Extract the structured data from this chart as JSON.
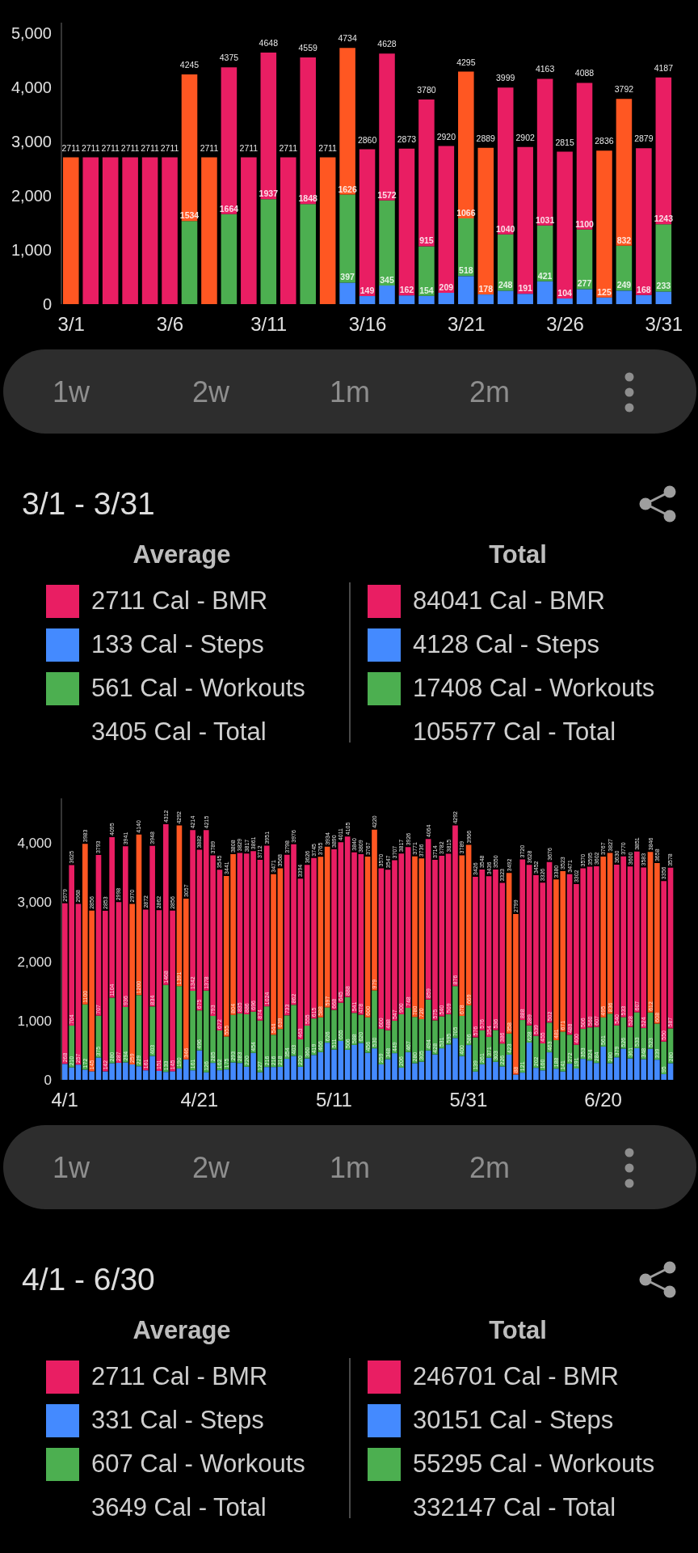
{
  "chart_data": [
    {
      "type": "bar",
      "stacked": true,
      "categories": [
        "3/1",
        null,
        null,
        null,
        null,
        "3/6",
        null,
        null,
        null,
        null,
        "3/11",
        null,
        null,
        null,
        null,
        "3/16",
        null,
        null,
        null,
        null,
        "3/21",
        null,
        null,
        null,
        null,
        "3/26",
        null,
        null,
        null,
        null,
        "3/31"
      ],
      "series": [
        {
          "color": "#448aff",
          "values": [
            null,
            null,
            null,
            null,
            null,
            null,
            null,
            null,
            null,
            null,
            null,
            null,
            null,
            null,
            397,
            149,
            345,
            162,
            154,
            209,
            518,
            178,
            248,
            191,
            421,
            104,
            277,
            125,
            249,
            168,
            233
          ],
          "value_labels": [
            null,
            null,
            null,
            null,
            null,
            null,
            null,
            null,
            null,
            null,
            null,
            null,
            null,
            null,
            "397",
            "149",
            "345",
            "162",
            "154",
            "209",
            "518",
            "178",
            "248",
            "191",
            "421",
            "104",
            "277",
            "125",
            "249",
            "168",
            "233"
          ]
        },
        {
          "color": "#4caf50",
          "values": [
            null,
            null,
            null,
            null,
            null,
            null,
            1534,
            null,
            1664,
            null,
            1937,
            null,
            1848,
            null,
            1626,
            null,
            1572,
            null,
            915,
            null,
            1066,
            null,
            1040,
            null,
            1031,
            null,
            1100,
            null,
            832,
            null,
            1243
          ],
          "value_labels": [
            null,
            null,
            null,
            null,
            null,
            null,
            "1534",
            null,
            "1664",
            null,
            "1937",
            null,
            "1848",
            null,
            "1626",
            null,
            "1572",
            null,
            "915",
            null,
            "1066",
            null,
            "1040",
            null,
            "1031",
            null,
            "1100",
            null,
            "832",
            null,
            "1243"
          ]
        },
        {
          "color": "#e91e63",
          "values": [
            2711,
            2711,
            2711,
            2711,
            2711,
            2711,
            2711,
            2711,
            2711,
            2711,
            2711,
            2711,
            2711,
            2711,
            2711,
            2711,
            2711,
            2711,
            2711,
            2711,
            2711,
            2711,
            2711,
            2711,
            2711,
            2711,
            2711,
            2711,
            2711,
            2711,
            2711
          ],
          "colors": [
            "#ff5722",
            "#e91e63",
            "#e91e63",
            "#e91e63",
            "#e91e63",
            "#e91e63",
            "#ff5722",
            "#ff5722",
            "#e91e63",
            "#e91e63",
            "#e91e63",
            "#e91e63",
            "#e91e63",
            "#ff5722",
            "#ff5722",
            "#e91e63",
            "#e91e63",
            "#e91e63",
            "#e91e63",
            "#e91e63",
            "#ff5722",
            "#ff5722",
            "#e91e63",
            "#e91e63",
            "#e91e63",
            "#e91e63",
            "#e91e63",
            "#ff5722",
            "#ff5722",
            "#e91e63",
            "#e91e63"
          ]
        }
      ],
      "totals": [
        "2711",
        "2711",
        "2711",
        "2711",
        "2711",
        "2711",
        "4245",
        "2711",
        "4375",
        "2711",
        "4648",
        "2711",
        "4559",
        "2711",
        "4734",
        "2860",
        "4628",
        "2873",
        "3780",
        "2920",
        "4295",
        "2889",
        "3999",
        "2902",
        "4163",
        "2815",
        "4088",
        "2836",
        "3792",
        "2879",
        "4187"
      ],
      "ylim": [
        0,
        5200
      ],
      "yticks": [
        0,
        {
          "value": 1000,
          "label": "1,000"
        },
        {
          "value": 2000,
          "label": "2,000"
        },
        {
          "value": 3000,
          "label": "3,000"
        },
        {
          "value": 4000,
          "label": "4,000"
        },
        {
          "value": 5000,
          "label": "5,000"
        }
      ]
    },
    {
      "type": "other",
      "title": "3/1 - 3/31",
      "annotations": [
        "1w",
        "2w",
        "1m",
        "2m",
        "Average",
        "Total",
        "2711 Cal - BMR",
        "133 Cal - Steps",
        "561 Cal - Workouts",
        "3405 Cal - Total",
        "84041 Cal - BMR",
        "4128 Cal - Steps",
        "17408 Cal - Workouts",
        "105577 Cal - Total"
      ]
    },
    {
      "type": "bar",
      "stacked": true,
      "categories": [
        "4/1",
        null,
        null,
        null,
        null,
        null,
        null,
        null,
        null,
        null,
        null,
        null,
        null,
        null,
        null,
        null,
        null,
        null,
        null,
        null,
        "4/21",
        null,
        null,
        null,
        null,
        null,
        null,
        null,
        null,
        null,
        null,
        null,
        null,
        null,
        null,
        null,
        null,
        null,
        null,
        null,
        "5/11",
        null,
        null,
        null,
        null,
        null,
        null,
        null,
        null,
        null,
        null,
        null,
        null,
        null,
        null,
        null,
        null,
        null,
        null,
        null,
        "5/31",
        null,
        null,
        null,
        null,
        null,
        null,
        null,
        null,
        null,
        null,
        null,
        null,
        null,
        null,
        null,
        null,
        null,
        null,
        null,
        "6/20",
        null,
        null,
        null,
        null,
        null,
        null,
        null,
        null,
        null,
        null
      ],
      "series": [
        {
          "color": "#448aff",
          "values": [
            268,
            210,
            257,
            172,
            145,
            375,
            142,
            280,
            287,
            294,
            259,
            229,
            161,
            403,
            151,
            133,
            145,
            190,
            346,
            161,
            496,
            126,
            285,
            162,
            175,
            293,
            283,
            220,
            454,
            127,
            216,
            216,
            218,
            354,
            403,
            220,
            360,
            419,
            466,
            626,
            511,
            655,
            506,
            588,
            620,
            456,
            530,
            259,
            348,
            449,
            206,
            467,
            280,
            305,
            494,
            428,
            531,
            595,
            705,
            400,
            586,
            139,
            261,
            371,
            303,
            226,
            423,
            88,
            121,
            628,
            202,
            160,
            463,
            188,
            141,
            272,
            191,
            353,
            324,
            284,
            561,
            280,
            379,
            526,
            361,
            533,
            348,
            523,
            339,
            95,
            280
          ],
          "value_labels": [
            "268",
            "210",
            "257",
            "172",
            "145",
            "375",
            "142",
            "280",
            "287",
            "294",
            "259",
            "229",
            "161",
            "403",
            "151",
            "133",
            "145",
            "190",
            "346",
            "161",
            "496",
            "126",
            "285",
            "162",
            "175",
            "293",
            "283",
            "220",
            "454",
            "127",
            "216",
            "216",
            "218",
            "354",
            "403",
            "220",
            "360",
            "419",
            "466",
            "626",
            "511",
            "655",
            "506",
            "588",
            "620",
            "456",
            "530",
            "259",
            "348",
            "449",
            "206",
            "467",
            "280",
            "305",
            "494",
            "428",
            "531",
            "595",
            "705",
            "400",
            "586",
            "139",
            "261",
            "371",
            "303",
            "226",
            "423",
            "88",
            "121",
            "628",
            "202",
            "160",
            "463",
            "188",
            "141",
            "272",
            "191",
            "353",
            "324",
            "284",
            "561",
            "280",
            "379",
            "526",
            "361",
            "533",
            "348",
            "523",
            "339",
            "95",
            "280"
          ]
        },
        {
          "color": "#4caf50",
          "values": [
            null,
            704,
            null,
            1100,
            null,
            707,
            null,
            1104,
            null,
            936,
            null,
            1200,
            null,
            834,
            null,
            1468,
            null,
            1391,
            null,
            1342,
            675,
            1378,
            793,
            672,
            555,
            804,
            835,
            886,
            696,
            874,
            1024,
            544,
            639,
            733,
            862,
            463,
            555,
            615,
            588,
            597,
            668,
            645,
            888,
            541,
            478,
            600,
            979,
            600,
            488,
            547,
            900,
            748,
            780,
            720,
            859,
            575,
            540,
            509,
            876,
            678,
            669,
            576,
            576,
            354,
            536,
            386,
            358,
            null,
            888,
            289,
            539,
            455,
            502,
            481,
            671,
            488,
            400,
            506,
            560,
            607,
            495,
            836,
            540,
            533,
            528,
            607,
            524,
            612,
            608,
            550,
            587
          ],
          "value_labels": [
            null,
            "704",
            null,
            "1100",
            null,
            "707",
            null,
            "1104",
            null,
            "936",
            null,
            "1200",
            null,
            "834",
            null,
            "1468",
            null,
            "1391",
            null,
            "1342",
            "675",
            "1378",
            "793",
            "672",
            "555",
            "804",
            "835",
            "886",
            "696",
            "874",
            "1024",
            "544",
            "639",
            "733",
            "862",
            "463",
            "555",
            "615",
            "588",
            "597",
            "668",
            "645",
            "888",
            "541",
            "478",
            "600",
            "979",
            "600",
            "488",
            "547",
            "900",
            "748",
            "780",
            "720",
            "859",
            "575",
            "540",
            "509",
            "876",
            "678",
            "669",
            "576",
            "576",
            "354",
            "536",
            "386",
            "358",
            null,
            "888",
            "289",
            "539",
            "455",
            "502",
            "481",
            "671",
            "488",
            "400",
            "506",
            "560",
            "607",
            "495",
            "836",
            "540",
            "533",
            "528",
            "607",
            "524",
            "612",
            "608",
            "550",
            "587"
          ]
        },
        {
          "color": "#e91e63",
          "values": [
            2711,
            2711,
            2711,
            2711,
            2711,
            2711,
            2711,
            2711,
            2711,
            2711,
            2711,
            2711,
            2711,
            2711,
            2711,
            2711,
            2711,
            2711,
            2711,
            2711,
            2711,
            2711,
            2711,
            2711,
            2711,
            2711,
            2711,
            2711,
            2711,
            2711,
            2711,
            2711,
            2711,
            2711,
            2711,
            2711,
            2711,
            2711,
            2711,
            2711,
            2711,
            2711,
            2711,
            2711,
            2711,
            2711,
            2711,
            2711,
            2711,
            2711,
            2711,
            2711,
            2711,
            2711,
            2711,
            2711,
            2711,
            2711,
            2711,
            2711,
            2711,
            2711,
            2711,
            2711,
            2711,
            2711,
            2711,
            2711,
            2711,
            2711,
            2711,
            2711,
            2711,
            2711,
            2711,
            2711,
            2711,
            2711,
            2711,
            2711,
            2711,
            2711,
            2711,
            2711,
            2711,
            2711,
            2711,
            2711,
            2711,
            2711,
            2711
          ],
          "colors": [
            "#e91e63",
            "#e91e63",
            "#e91e63",
            "#ff5722",
            "#ff5722",
            "#e91e63",
            "#e91e63",
            "#e91e63",
            "#e91e63",
            "#e91e63",
            "#ff5722",
            "#ff5722",
            "#e91e63",
            "#e91e63",
            "#e91e63",
            "#e91e63",
            "#e91e63",
            "#ff5722",
            "#ff5722",
            "#e91e63",
            "#e91e63",
            "#e91e63",
            "#e91e63",
            "#e91e63",
            "#ff5722",
            "#ff5722",
            "#e91e63",
            "#e91e63",
            "#e91e63",
            "#e91e63",
            "#e91e63",
            "#ff5722",
            "#ff5722",
            "#e91e63",
            "#e91e63",
            "#e91e63",
            "#e91e63",
            "#e91e63",
            "#ff5722",
            "#ff5722",
            "#e91e63",
            "#e91e63",
            "#e91e63",
            "#e91e63",
            "#e91e63",
            "#ff5722",
            "#ff5722",
            "#e91e63",
            "#e91e63",
            "#e91e63",
            "#e91e63",
            "#e91e63",
            "#ff5722",
            "#ff5722",
            "#e91e63",
            "#e91e63",
            "#e91e63",
            "#e91e63",
            "#e91e63",
            "#ff5722",
            "#ff5722",
            "#e91e63",
            "#e91e63",
            "#e91e63",
            "#e91e63",
            "#e91e63",
            "#ff5722",
            "#ff5722",
            "#e91e63",
            "#e91e63",
            "#e91e63",
            "#e91e63",
            "#e91e63",
            "#ff5722",
            "#ff5722",
            "#e91e63",
            "#e91e63",
            "#e91e63",
            "#e91e63",
            "#e91e63",
            "#ff5722",
            "#ff5722",
            "#e91e63",
            "#e91e63",
            "#e91e63",
            "#e91e63",
            "#e91e63",
            "#ff5722",
            "#ff5722",
            "#e91e63",
            "#e91e63"
          ]
        }
      ],
      "totals": [
        "2979",
        "3625",
        "2968",
        "3983",
        "2856",
        "3793",
        "2853",
        "4095",
        "2998",
        "3941",
        "2970",
        "4140",
        "2872",
        "3948",
        "2862",
        "4312",
        "2856",
        "4292",
        "3057",
        "4214",
        "3882",
        "4215",
        "3789",
        "3545",
        "3441",
        "3808",
        "3829",
        "3817",
        "3861",
        "3712",
        "3951",
        "3471",
        "3568",
        "3798",
        "3976",
        "3394",
        "3626",
        "3745",
        "3765",
        "3934",
        "3890",
        "4011",
        "4105",
        "3840",
        "3809",
        "3767",
        "4220",
        "3570",
        "3547",
        "3707",
        "3817",
        "3926",
        "3771",
        "3736",
        "4064",
        "3714",
        "3782",
        "3815",
        "4292",
        "3789",
        "3966",
        "3426",
        "3548",
        "3436",
        "3550",
        "3323",
        "3492",
        "2799",
        "3720",
        "3628",
        "3452",
        "3326",
        "3676",
        "3380",
        "3523",
        "3471",
        "3302",
        "3570",
        "3595",
        "3602",
        "3767",
        "3827",
        "3630",
        "3770",
        "3600",
        "3851",
        "3583",
        "3846",
        "3658",
        "3356",
        "3578"
      ],
      "ylim": [
        0,
        4750
      ],
      "yticks": [
        0,
        {
          "value": 1000,
          "label": "1,000"
        },
        {
          "value": 2000,
          "label": "2,000"
        },
        {
          "value": 3000,
          "label": "3,000"
        },
        {
          "value": 4000,
          "label": "4,000"
        }
      ]
    },
    {
      "type": "other",
      "title": "4/1 - 6/30",
      "annotations": [
        "1w",
        "2w",
        "1m",
        "2m",
        "Average",
        "Total",
        "2711 Cal - BMR",
        "331 Cal - Steps",
        "607 Cal - Workouts",
        "3649 Cal - Total",
        "246701 Cal - BMR",
        "30151 Cal - Steps",
        "55295 Cal - Workouts",
        "332147 Cal - Total"
      ]
    }
  ]
}
